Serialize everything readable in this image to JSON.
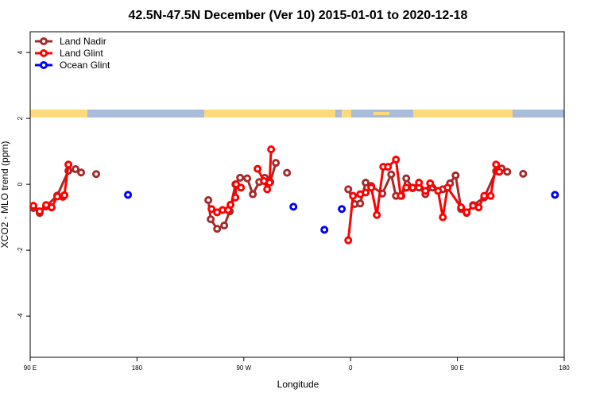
{
  "chart_data": {
    "type": "line",
    "title": "42.5N-47.5N December (Ver 10)   2015-01-01 to 2020-12-18",
    "x_label": "Longitude",
    "y_label": "XCO2 - MLO trend (ppm)",
    "xlim": [
      90,
      540
    ],
    "ylim": [
      -5.25,
      4.63
    ],
    "xticks": [
      {
        "value": 90,
        "label": "90 E"
      },
      {
        "value": 180,
        "label": "180"
      },
      {
        "value": 270,
        "label": "90 W"
      },
      {
        "value": 360,
        "label": "0"
      },
      {
        "value": 450,
        "label": "90 E"
      },
      {
        "value": 540,
        "label": "180"
      }
    ],
    "yticks": [
      -4,
      -2,
      0,
      2,
      4
    ],
    "legend": "top-left",
    "series": [
      {
        "name": "Land Nadir",
        "color": "#a52a2a",
        "x": [
          92.7,
          98.0,
          103.4,
          112.8,
          122.2,
          128.2,
          132.9,
          null,
          145.6,
          null,
          240.1,
          242.1,
          247.5,
          253.5,
          258.2,
          262.9,
          266.9,
          272.9,
          277.6,
          283.0,
          287.7,
          292.3,
          297.0,
          null,
          306.4,
          null,
          358.0,
          363.4,
          368.1,
          372.7,
          377.4,
          386.8,
          394.2,
          398.2,
          402.9,
          406.9,
          412.3,
          417.6,
          423.0,
          429.0,
          437.7,
          443.8,
          448.5,
          453.1,
          457.8,
          463.2,
          472.6,
          482.6,
          487.3,
          492.0,
          null,
          505.4
        ],
        "values": [
          -0.72,
          -0.87,
          -0.67,
          -0.34,
          0.41,
          0.46,
          0.36,
          null,
          0.31,
          null,
          -0.48,
          -1.06,
          -1.35,
          -1.25,
          -0.82,
          0.0,
          0.2,
          0.18,
          -0.3,
          0.07,
          0.2,
          0.07,
          0.65,
          null,
          0.35,
          null,
          -0.15,
          -0.6,
          -0.58,
          0.05,
          -0.05,
          -0.28,
          0.3,
          -0.35,
          -0.35,
          0.18,
          -0.12,
          -0.1,
          -0.3,
          -0.1,
          -0.15,
          0.03,
          0.27,
          -0.75,
          -0.87,
          -0.63,
          -0.4,
          0.4,
          0.48,
          0.38,
          null,
          0.32
        ]
      },
      {
        "name": "Land Glint",
        "color": "#ff0000",
        "x": [
          92.7,
          98.0,
          103.4,
          108.1,
          112.8,
          117.5,
          118.8,
          122.2,
          null,
          242.8,
          247.5,
          252.1,
          256.8,
          258.8,
          262.9,
          263.5,
          267.6,
          null,
          281.6,
          287.0,
          289.7,
          291.7,
          293.0,
          null,
          358.0,
          362.0,
          368.1,
          372.7,
          377.4,
          382.1,
          387.5,
          391.5,
          398.2,
          402.2,
          406.9,
          412.3,
          417.6,
          423.0,
          427.0,
          433.7,
          437.7,
          441.7,
          453.1,
          457.8,
          463.2,
          467.9,
          472.6,
          478.0,
          482.6,
          485.3
        ],
        "values": [
          -0.65,
          -0.82,
          -0.63,
          -0.7,
          -0.37,
          -0.38,
          -0.33,
          0.6,
          null,
          -0.75,
          -0.85,
          -0.78,
          -0.78,
          -0.62,
          -0.4,
          0.0,
          -0.1,
          null,
          0.47,
          0.1,
          -0.15,
          0.05,
          1.06,
          null,
          -1.7,
          -0.35,
          -0.3,
          -0.25,
          -0.1,
          -0.93,
          0.53,
          0.53,
          0.75,
          -0.35,
          -0.1,
          -0.1,
          0.05,
          -0.2,
          0.03,
          -0.2,
          -1.0,
          -0.1,
          -0.7,
          -0.85,
          -0.65,
          -0.7,
          -0.35,
          -0.35,
          0.6,
          0.38
        ]
      },
      {
        "name": "Ocean Glint",
        "color": "#0000ff",
        "x": [
          172.4,
          null,
          311.8,
          null,
          337.9,
          null,
          352.6,
          null,
          532.2
        ],
        "values": [
          -0.32,
          null,
          -0.68,
          null,
          -1.38,
          null,
          -0.75,
          null,
          -0.32
        ]
      }
    ]
  }
}
